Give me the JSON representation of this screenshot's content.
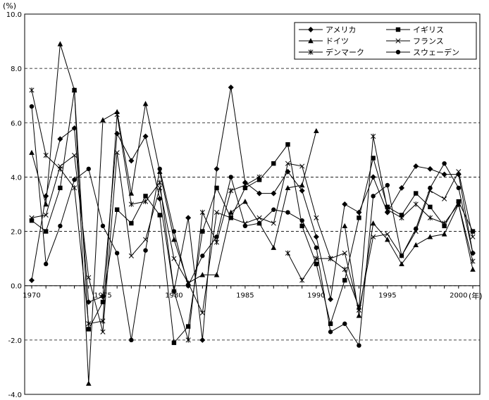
{
  "chart_data": {
    "type": "line",
    "y_unit_label": "(%)",
    "x_unit_label": "(年)",
    "ylim": [
      -4.0,
      10.0
    ],
    "xlim": [
      1970,
      2001
    ],
    "y_ticks": [
      -4.0,
      -2.0,
      0.0,
      2.0,
      4.0,
      6.0,
      8.0,
      10.0
    ],
    "y_tick_labels": [
      "-4.0",
      "-2.0",
      "0.0",
      "2.0",
      "4.0",
      "6.0",
      "8.0",
      "10.0"
    ],
    "x_ticks": [
      1970,
      1975,
      1980,
      1985,
      1990,
      1995,
      2000
    ],
    "x_tick_labels": [
      "1970",
      "1975",
      "1980",
      "1985",
      "1990",
      "1995",
      "2000"
    ],
    "grid": "horizontal dashed",
    "legend_position": "top-right",
    "series": [
      {
        "name": "アメリカ",
        "marker": "diamond",
        "x": [
          1970,
          1971,
          1972,
          1973,
          1974,
          1975,
          1976,
          1977,
          1978,
          1979,
          1980,
          1981,
          1982,
          1983,
          1984,
          1985,
          1986,
          1987,
          1988,
          1989,
          1990,
          1991,
          1992,
          1993,
          1994,
          1995,
          1996,
          1997,
          1998,
          1999,
          2000,
          2001
        ],
        "y": [
          0.2,
          3.3,
          5.4,
          5.8,
          -0.6,
          -0.4,
          5.6,
          4.6,
          5.5,
          3.2,
          -0.2,
          2.5,
          -2.0,
          4.3,
          7.3,
          3.8,
          3.4,
          3.4,
          4.2,
          3.5,
          1.8,
          -0.5,
          3.0,
          2.7,
          4.0,
          2.7,
          3.6,
          4.4,
          4.3,
          4.1,
          4.1,
          1.2
        ]
      },
      {
        "name": "イギリス",
        "marker": "square",
        "x": [
          1970,
          1971,
          1972,
          1973,
          1974,
          1975,
          1976,
          1977,
          1978,
          1979,
          1980,
          1981,
          1982,
          1983,
          1984,
          1985,
          1986,
          1987,
          1988,
          1989,
          1990,
          1991,
          1992,
          1993,
          1994,
          1995,
          1996,
          1997,
          1998,
          1999,
          2000,
          2001
        ],
        "y": [
          2.4,
          2.0,
          3.6,
          7.2,
          -1.6,
          -0.6,
          2.8,
          2.3,
          3.3,
          2.6,
          -2.1,
          -1.5,
          2.0,
          3.6,
          2.5,
          3.6,
          3.9,
          4.5,
          5.2,
          2.2,
          0.8,
          -1.4,
          0.2,
          2.5,
          4.7,
          2.9,
          2.6,
          3.4,
          2.9,
          2.2,
          3.1,
          2.0
        ]
      },
      {
        "name": "ドイツ",
        "marker": "triangle",
        "x": [
          1970,
          1971,
          1972,
          1973,
          1974,
          1975,
          1976,
          1977,
          1978,
          1979,
          1980,
          1981,
          1982,
          1983,
          1984,
          1985,
          1986,
          1987,
          1988,
          1989,
          1990,
          1991,
          1992,
          1993,
          1994,
          1995,
          1996,
          1997,
          1998,
          1999,
          2000,
          2001
        ],
        "y": [
          4.9,
          3.0,
          8.9,
          7.2,
          -3.6,
          6.1,
          6.4,
          3.4,
          6.7,
          4.2,
          1.7,
          0.1,
          0.4,
          0.4,
          2.7,
          3.1,
          2.3,
          1.4,
          3.6,
          3.7,
          5.7,
          null,
          2.2,
          -1.1,
          2.3,
          1.7,
          0.8,
          1.5,
          1.8,
          1.9,
          3.0,
          0.6
        ]
      },
      {
        "name": "フランス",
        "marker": "x",
        "x": [
          1970,
          1971,
          1972,
          1973,
          1974,
          1975,
          1976,
          1977,
          1978,
          1979,
          1980,
          1981,
          1982,
          1983,
          1984,
          1985,
          1986,
          1987,
          1988,
          1989,
          1990,
          1991,
          1992,
          1993,
          1994,
          1995,
          1996,
          1997,
          1998,
          1999,
          2000,
          2001
        ],
        "y": [
          2.5,
          2.6,
          4.4,
          4.8,
          0.3,
          -1.7,
          4.9,
          1.1,
          1.7,
          3.6,
          1.0,
          0.1,
          -1.0,
          2.7,
          2.5,
          2.3,
          2.5,
          2.3,
          4.5,
          4.4,
          2.5,
          1.0,
          1.2,
          -0.9,
          1.8,
          1.9,
          1.1,
          2.0,
          3.5,
          3.2,
          4.2,
          1.8
        ]
      },
      {
        "name": "デンマーク",
        "marker": "asterisk",
        "x": [
          1970,
          1971,
          1972,
          1973,
          1974,
          1975,
          1976,
          1977,
          1978,
          1979,
          1980,
          1981,
          1982,
          1983,
          1984,
          1985,
          1986,
          1987,
          1988,
          1989,
          1990,
          1991,
          1992,
          1993,
          1994,
          1995,
          1996,
          1997,
          1998,
          1999,
          2000,
          2001
        ],
        "y": [
          7.2,
          4.8,
          4.3,
          3.6,
          -1.4,
          -1.3,
          6.3,
          3.0,
          3.1,
          3.8,
          -0.2,
          -2.0,
          2.7,
          1.6,
          3.5,
          3.7,
          4.0,
          null,
          1.2,
          0.2,
          1.0,
          1.0,
          0.6,
          -0.8,
          5.5,
          2.8,
          2.5,
          3.0,
          2.5,
          2.3,
          3.0,
          0.9
        ]
      },
      {
        "name": "スウェーデン",
        "marker": "circle",
        "x": [
          1970,
          1971,
          1972,
          1973,
          1974,
          1975,
          1976,
          1977,
          1978,
          1979,
          1980,
          1981,
          1982,
          1983,
          1984,
          1985,
          1986,
          1987,
          1988,
          1989,
          1990,
          1991,
          1992,
          1993,
          1994,
          1995,
          1996,
          1997,
          1998,
          1999,
          2000,
          2001
        ],
        "y": [
          6.6,
          0.8,
          2.2,
          3.9,
          4.3,
          2.2,
          1.2,
          -2.0,
          1.3,
          4.3,
          2.0,
          0.0,
          1.1,
          1.8,
          4.0,
          2.2,
          2.3,
          2.8,
          2.7,
          2.4,
          1.4,
          -1.7,
          -1.4,
          -2.2,
          3.3,
          3.7,
          1.1,
          2.1,
          3.6,
          4.5,
          3.6,
          1.2
        ]
      }
    ]
  }
}
